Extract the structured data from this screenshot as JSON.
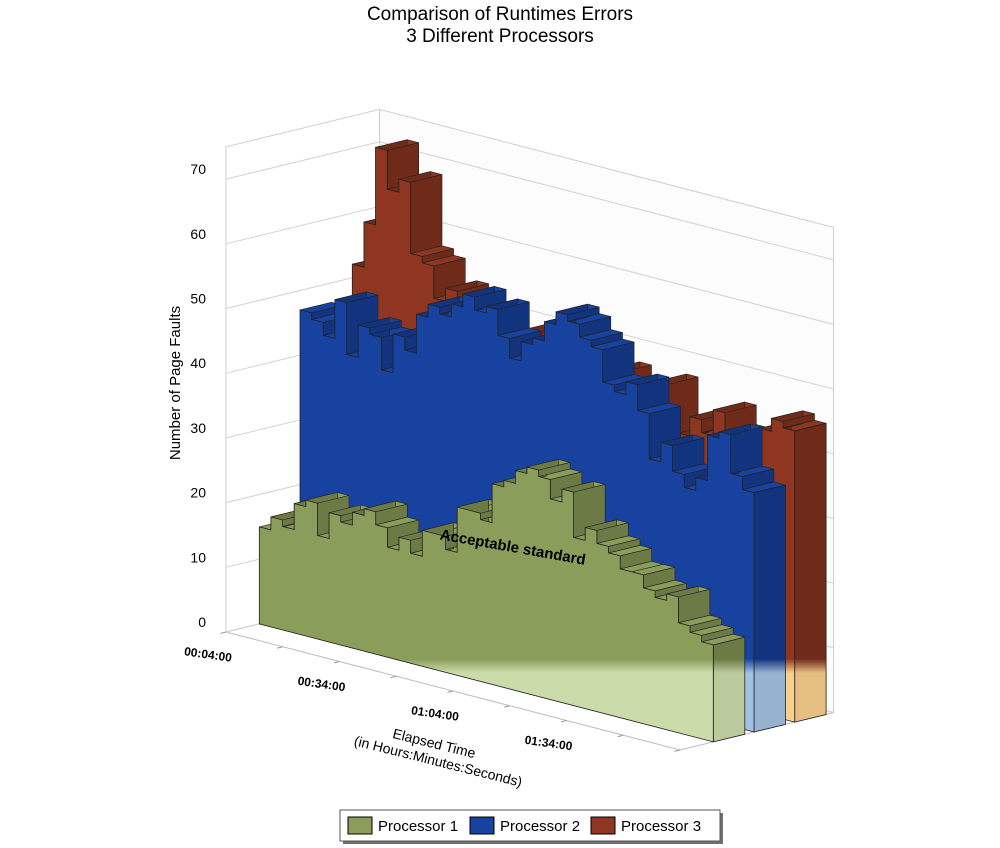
{
  "chart_data": {
    "type": "area",
    "title": [
      "Comparison of Runtimes Errors",
      "3 Different Processors"
    ],
    "ylabel": "Number of Page Faults",
    "xlabel": [
      "Elapsed Time",
      "(in Hours:Minutes:Seconds)"
    ],
    "ylim": [
      0,
      70
    ],
    "yticks": [
      "0",
      "10",
      "20",
      "30",
      "40",
      "50",
      "60",
      "70"
    ],
    "xticks": [
      "00:04:00",
      "00:34:00",
      "01:04:00",
      "01:34:00"
    ],
    "threshold": {
      "label": "Acceptable standard",
      "value": 13
    },
    "series": [
      {
        "name": "Processor 1",
        "color": "#8a9d5a",
        "below_color": "#cbdcaa",
        "values": [
          15,
          17,
          16,
          20,
          21,
          16,
          20,
          19,
          21,
          22,
          20,
          17,
          19,
          17,
          21,
          21,
          19,
          26,
          26,
          25,
          31,
          32,
          34,
          35,
          34,
          31,
          33,
          26,
          28,
          26,
          25,
          23,
          23,
          21,
          20,
          21,
          17,
          16,
          15
        ]
      },
      {
        "name": "Processor 2",
        "color": "#1742a0",
        "below_color": "#a3c2e3",
        "values": [
          47,
          46,
          44,
          50,
          42,
          47,
          46,
          41,
          47,
          45,
          51,
          53,
          52,
          54,
          56,
          54,
          55,
          51,
          48,
          51,
          52,
          55,
          57,
          56,
          54,
          53,
          48,
          47,
          49,
          45,
          38,
          41,
          37,
          35,
          37,
          44,
          45,
          39,
          37
        ]
      },
      {
        "name": "Processor 3",
        "color": "#8e3620",
        "below_color": "#f9cf8d",
        "values": [
          46,
          53,
          60,
          72,
          66,
          68,
          57,
          56,
          51,
          53,
          48,
          46,
          48,
          45,
          46,
          44,
          50,
          49,
          51,
          48,
          46,
          48,
          45,
          47,
          42,
          44,
          41,
          47,
          39,
          40,
          43,
          41,
          45,
          42,
          39,
          40,
          44,
          46,
          45
        ]
      }
    ],
    "legend": {
      "placement": "bottom"
    },
    "grid": true
  }
}
